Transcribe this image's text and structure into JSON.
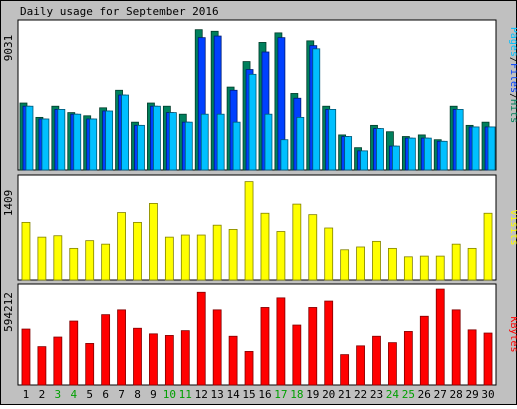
{
  "title": "Daily usage for September 2016",
  "colors": {
    "background": "#c0c0c0",
    "plot_bg": "#ffffff",
    "hits": "#00805c",
    "files": "#0040ff",
    "pages": "#00c0ff",
    "visits": "#ffff00",
    "kbytes": "#ff0000",
    "weekday_label": "#000000",
    "weekend_label": "#00a000"
  },
  "chart_data": [
    {
      "type": "bar",
      "name": "pages-files-hits",
      "ymax_label": "9031",
      "ylim": [
        0,
        9031
      ],
      "side_label": [
        "Pages",
        "/",
        "Files",
        "/",
        "Hits"
      ],
      "categories": [
        "1",
        "2",
        "3",
        "4",
        "5",
        "6",
        "7",
        "8",
        "9",
        "10",
        "11",
        "12",
        "13",
        "14",
        "15",
        "16",
        "17",
        "18",
        "19",
        "20",
        "21",
        "22",
        "23",
        "24",
        "25",
        "26",
        "27",
        "28",
        "29",
        "30"
      ],
      "weekend_days": [
        "3",
        "4",
        "10",
        "11",
        "17",
        "18",
        "24",
        "25"
      ],
      "series": [
        {
          "name": "Hits",
          "values": [
            4200,
            3300,
            4000,
            3600,
            3400,
            3900,
            5000,
            3000,
            4200,
            4000,
            3500,
            8800,
            8700,
            5200,
            6800,
            8000,
            8600,
            4800,
            8100,
            4000,
            2200,
            1400,
            2800,
            2400,
            2100,
            2200,
            1900,
            4000,
            2800,
            3000
          ]
        },
        {
          "name": "Files",
          "values": [
            4000,
            3200,
            3800,
            3500,
            3200,
            3700,
            4700,
            2800,
            4000,
            3600,
            3000,
            8300,
            8400,
            5000,
            6300,
            7400,
            8300,
            4500,
            7800,
            3800,
            2100,
            1200,
            2600,
            1500,
            2000,
            2000,
            1800,
            3800,
            2700,
            2700
          ]
        },
        {
          "name": "Pages",
          "values": [
            4000,
            3200,
            3800,
            3500,
            3200,
            3700,
            4700,
            2800,
            4000,
            3600,
            3000,
            3500,
            3500,
            3000,
            6000,
            3500,
            1900,
            3300,
            7600,
            3800,
            2100,
            1200,
            2600,
            1500,
            2000,
            2000,
            1800,
            3800,
            2700,
            2700
          ]
        }
      ]
    },
    {
      "type": "bar",
      "name": "visits",
      "ymax_label": "1409",
      "ylim": [
        0,
        1409
      ],
      "side_label": [
        "Visits"
      ],
      "series": [
        {
          "name": "Visits",
          "values": [
            820,
            610,
            630,
            450,
            560,
            510,
            960,
            820,
            1090,
            610,
            640,
            640,
            780,
            720,
            1400,
            950,
            690,
            1080,
            930,
            740,
            430,
            470,
            550,
            450,
            330,
            340,
            340,
            510,
            450,
            950
          ]
        }
      ]
    },
    {
      "type": "bar",
      "name": "kbytes",
      "ymax_label": "594212",
      "ylim": [
        0,
        594212
      ],
      "side_label": [
        "KBytes"
      ],
      "series": [
        {
          "name": "KBytes",
          "values": [
            350000,
            240000,
            300000,
            400000,
            260000,
            440000,
            470000,
            355000,
            320000,
            310000,
            340000,
            580000,
            470000,
            305000,
            210000,
            485000,
            545000,
            375000,
            485000,
            525000,
            190000,
            245000,
            305000,
            265000,
            335000,
            430000,
            600000,
            470000,
            345000,
            325000
          ]
        }
      ]
    }
  ]
}
